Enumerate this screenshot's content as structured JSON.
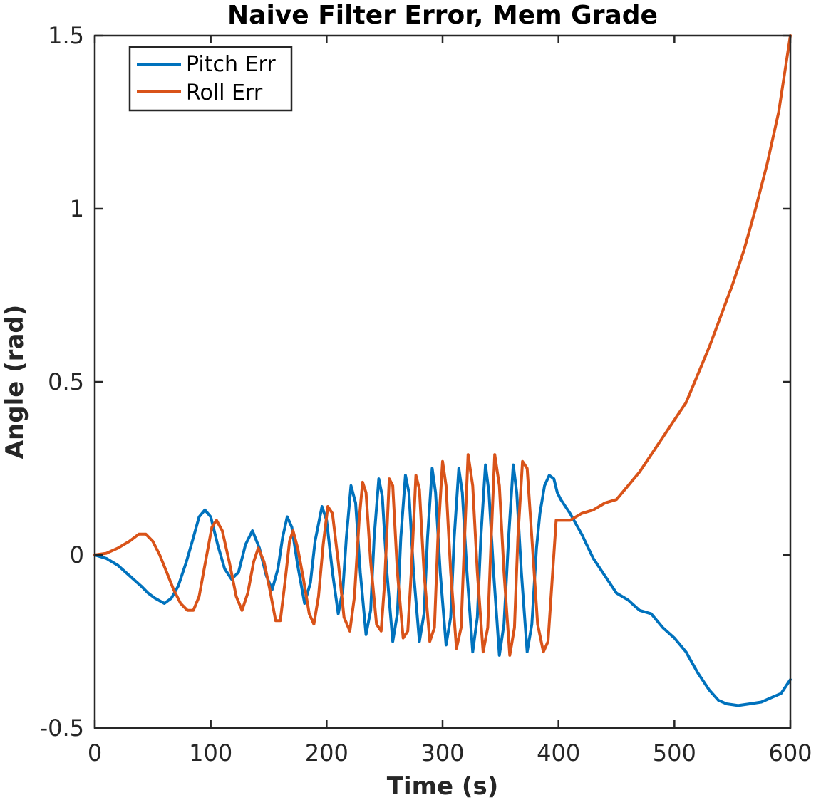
{
  "chart_data": {
    "type": "line",
    "title": "Naive Filter Error, Mem Grade",
    "xlabel": "Time (s)",
    "ylabel": "Angle (rad)",
    "xlim": [
      0,
      600
    ],
    "ylim": [
      -0.5,
      1.5
    ],
    "x_ticks": [
      0,
      100,
      200,
      300,
      400,
      500,
      600
    ],
    "y_ticks": [
      -0.5,
      0,
      0.5,
      1,
      1.5
    ],
    "x_tick_labels": [
      "0",
      "100",
      "200",
      "300",
      "400",
      "500",
      "600"
    ],
    "y_tick_labels": [
      "-0.5",
      "0",
      "0.5",
      "1",
      "1.5"
    ],
    "grid": false,
    "legend_position": "top-left",
    "series": [
      {
        "name": "Pitch Err",
        "color": "#0072BD",
        "points": [
          [
            0,
            0
          ],
          [
            10,
            -0.01
          ],
          [
            20,
            -0.03
          ],
          [
            30,
            -0.06
          ],
          [
            40,
            -0.09
          ],
          [
            46,
            -0.11
          ],
          [
            52,
            -0.125
          ],
          [
            60,
            -0.14
          ],
          [
            66,
            -0.125
          ],
          [
            72,
            -0.09
          ],
          [
            79,
            -0.02
          ],
          [
            85,
            0.05
          ],
          [
            90,
            0.11
          ],
          [
            95,
            0.13
          ],
          [
            100,
            0.11
          ],
          [
            106,
            0.03
          ],
          [
            112,
            -0.04
          ],
          [
            118,
            -0.07
          ],
          [
            124,
            -0.05
          ],
          [
            130,
            0.03
          ],
          [
            136,
            0.07
          ],
          [
            142,
            0.02
          ],
          [
            148,
            -0.06
          ],
          [
            153,
            -0.1
          ],
          [
            158,
            -0.04
          ],
          [
            162,
            0.05
          ],
          [
            166,
            0.11
          ],
          [
            170,
            0.08
          ],
          [
            175,
            -0.03
          ],
          [
            181,
            -0.14
          ],
          [
            186,
            -0.08
          ],
          [
            190,
            0.04
          ],
          [
            196,
            0.14
          ],
          [
            200,
            0.1
          ],
          [
            205,
            -0.05
          ],
          [
            210,
            -0.17
          ],
          [
            214,
            -0.1
          ],
          [
            217,
            0.05
          ],
          [
            221,
            0.2
          ],
          [
            225,
            0.15
          ],
          [
            229,
            -0.05
          ],
          [
            234,
            -0.23
          ],
          [
            238,
            -0.16
          ],
          [
            241,
            0.05
          ],
          [
            245,
            0.22
          ],
          [
            248,
            0.17
          ],
          [
            252,
            -0.05
          ],
          [
            257,
            -0.25
          ],
          [
            261,
            -0.17
          ],
          [
            264,
            0.05
          ],
          [
            268,
            0.23
          ],
          [
            271,
            0.18
          ],
          [
            275,
            -0.05
          ],
          [
            280,
            -0.25
          ],
          [
            284,
            -0.17
          ],
          [
            287,
            0.05
          ],
          [
            291,
            0.25
          ],
          [
            294,
            0.18
          ],
          [
            298,
            -0.05
          ],
          [
            303,
            -0.26
          ],
          [
            307,
            -0.18
          ],
          [
            310,
            0.05
          ],
          [
            314,
            0.25
          ],
          [
            317,
            0.18
          ],
          [
            321,
            -0.05
          ],
          [
            326,
            -0.28
          ],
          [
            330,
            -0.18
          ],
          [
            333,
            0.05
          ],
          [
            337,
            0.26
          ],
          [
            340,
            0.18
          ],
          [
            344,
            -0.05
          ],
          [
            349,
            -0.29
          ],
          [
            353,
            -0.2
          ],
          [
            357,
            0.05
          ],
          [
            361,
            0.26
          ],
          [
            364,
            0.18
          ],
          [
            368,
            -0.05
          ],
          [
            373,
            -0.28
          ],
          [
            377,
            -0.2
          ],
          [
            381,
            0.02
          ],
          [
            384,
            0.12
          ],
          [
            388,
            0.2
          ],
          [
            392,
            0.23
          ],
          [
            396,
            0.22
          ],
          [
            399,
            0.18
          ],
          [
            402,
            0.16
          ],
          [
            410,
            0.12
          ],
          [
            420,
            0.06
          ],
          [
            430,
            -0.01
          ],
          [
            440,
            -0.06
          ],
          [
            450,
            -0.11
          ],
          [
            460,
            -0.13
          ],
          [
            470,
            -0.16
          ],
          [
            480,
            -0.17
          ],
          [
            490,
            -0.21
          ],
          [
            500,
            -0.24
          ],
          [
            510,
            -0.28
          ],
          [
            520,
            -0.34
          ],
          [
            530,
            -0.39
          ],
          [
            538,
            -0.42
          ],
          [
            545,
            -0.43
          ],
          [
            555,
            -0.435
          ],
          [
            565,
            -0.43
          ],
          [
            575,
            -0.425
          ],
          [
            585,
            -0.41
          ],
          [
            592,
            -0.4
          ],
          [
            600,
            -0.36
          ]
        ]
      },
      {
        "name": "Roll Err",
        "color": "#D95319",
        "points": [
          [
            0,
            0
          ],
          [
            10,
            0.005
          ],
          [
            20,
            0.02
          ],
          [
            30,
            0.04
          ],
          [
            38,
            0.06
          ],
          [
            44,
            0.06
          ],
          [
            50,
            0.04
          ],
          [
            56,
            0
          ],
          [
            62,
            -0.05
          ],
          [
            68,
            -0.1
          ],
          [
            74,
            -0.14
          ],
          [
            80,
            -0.16
          ],
          [
            85,
            -0.16
          ],
          [
            90,
            -0.12
          ],
          [
            96,
            -0.01
          ],
          [
            101,
            0.08
          ],
          [
            105,
            0.1
          ],
          [
            110,
            0.07
          ],
          [
            116,
            -0.02
          ],
          [
            122,
            -0.12
          ],
          [
            127,
            -0.16
          ],
          [
            132,
            -0.11
          ],
          [
            137,
            -0.02
          ],
          [
            141,
            0.02
          ],
          [
            146,
            -0.02
          ],
          [
            151,
            -0.1
          ],
          [
            156,
            -0.19
          ],
          [
            160,
            -0.19
          ],
          [
            164,
            -0.08
          ],
          [
            168,
            0.04
          ],
          [
            171,
            0.07
          ],
          [
            175,
            0.02
          ],
          [
            180,
            -0.07
          ],
          [
            185,
            -0.17
          ],
          [
            189,
            -0.2
          ],
          [
            193,
            -0.12
          ],
          [
            197,
            0.03
          ],
          [
            201,
            0.14
          ],
          [
            205,
            0.12
          ],
          [
            210,
            -0.02
          ],
          [
            215,
            -0.18
          ],
          [
            220,
            -0.22
          ],
          [
            224,
            -0.12
          ],
          [
            228,
            0.1
          ],
          [
            231,
            0.21
          ],
          [
            234,
            0.18
          ],
          [
            238,
            -0.02
          ],
          [
            243,
            -0.2
          ],
          [
            247,
            -0.22
          ],
          [
            250,
            -0.08
          ],
          [
            254,
            0.22
          ],
          [
            257,
            0.2
          ],
          [
            261,
            -0.05
          ],
          [
            266,
            -0.24
          ],
          [
            270,
            -0.22
          ],
          [
            273,
            -0.05
          ],
          [
            277,
            0.23
          ],
          [
            280,
            0.19
          ],
          [
            284,
            -0.05
          ],
          [
            289,
            -0.25
          ],
          [
            293,
            -0.21
          ],
          [
            296,
            0.05
          ],
          [
            300,
            0.27
          ],
          [
            303,
            0.2
          ],
          [
            307,
            -0.05
          ],
          [
            312,
            -0.27
          ],
          [
            316,
            -0.21
          ],
          [
            319,
            0.05
          ],
          [
            322,
            0.29
          ],
          [
            326,
            0.2
          ],
          [
            330,
            -0.05
          ],
          [
            335,
            -0.28
          ],
          [
            339,
            -0.21
          ],
          [
            342,
            0.05
          ],
          [
            345,
            0.29
          ],
          [
            349,
            0.2
          ],
          [
            353,
            -0.05
          ],
          [
            358,
            -0.29
          ],
          [
            362,
            -0.21
          ],
          [
            365,
            0.05
          ],
          [
            369,
            0.27
          ],
          [
            373,
            0.25
          ],
          [
            377,
            0.05
          ],
          [
            382,
            -0.2
          ],
          [
            387,
            -0.28
          ],
          [
            391,
            -0.25
          ],
          [
            395,
            -0.05
          ],
          [
            398,
            0.1
          ],
          [
            410,
            0.1
          ],
          [
            420,
            0.12
          ],
          [
            430,
            0.13
          ],
          [
            440,
            0.15
          ],
          [
            450,
            0.16
          ],
          [
            460,
            0.2
          ],
          [
            470,
            0.24
          ],
          [
            480,
            0.29
          ],
          [
            490,
            0.34
          ],
          [
            500,
            0.39
          ],
          [
            510,
            0.44
          ],
          [
            520,
            0.52
          ],
          [
            530,
            0.6
          ],
          [
            540,
            0.69
          ],
          [
            550,
            0.78
          ],
          [
            560,
            0.88
          ],
          [
            570,
            1.0
          ],
          [
            580,
            1.13
          ],
          [
            590,
            1.28
          ],
          [
            600,
            1.5
          ]
        ]
      }
    ]
  }
}
